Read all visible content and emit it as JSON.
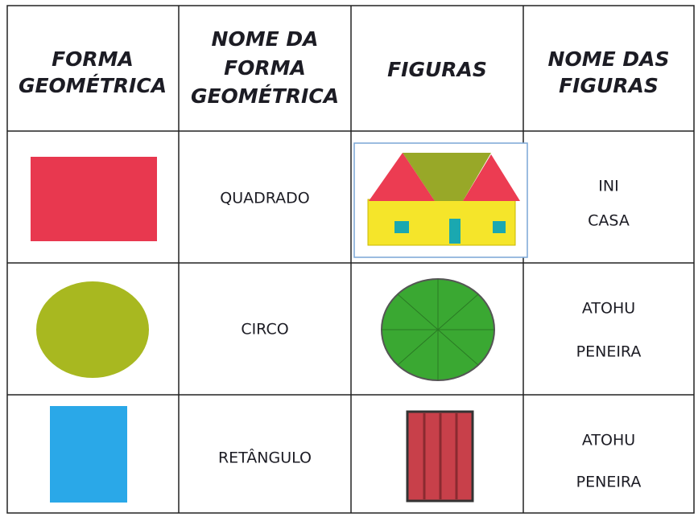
{
  "table": {
    "headers": [
      [
        "FORMA",
        "GEOMÉTRICA"
      ],
      [
        "NOME DA",
        "FORMA",
        "GEOMÉTRICA"
      ],
      [
        "FIGURAS"
      ],
      [
        "NOME DAS",
        "FIGURAS"
      ]
    ],
    "rows": [
      {
        "shape_name": "QUADRADO",
        "figure_name": [
          "INI",
          "CASA"
        ]
      },
      {
        "shape_name": "CIRCO",
        "figure_name": [
          "ATOHU",
          "PENEIRA"
        ]
      },
      {
        "shape_name": "RETÂNGULO",
        "figure_name": [
          "ATOHU",
          "PENEIRA"
        ]
      }
    ]
  }
}
